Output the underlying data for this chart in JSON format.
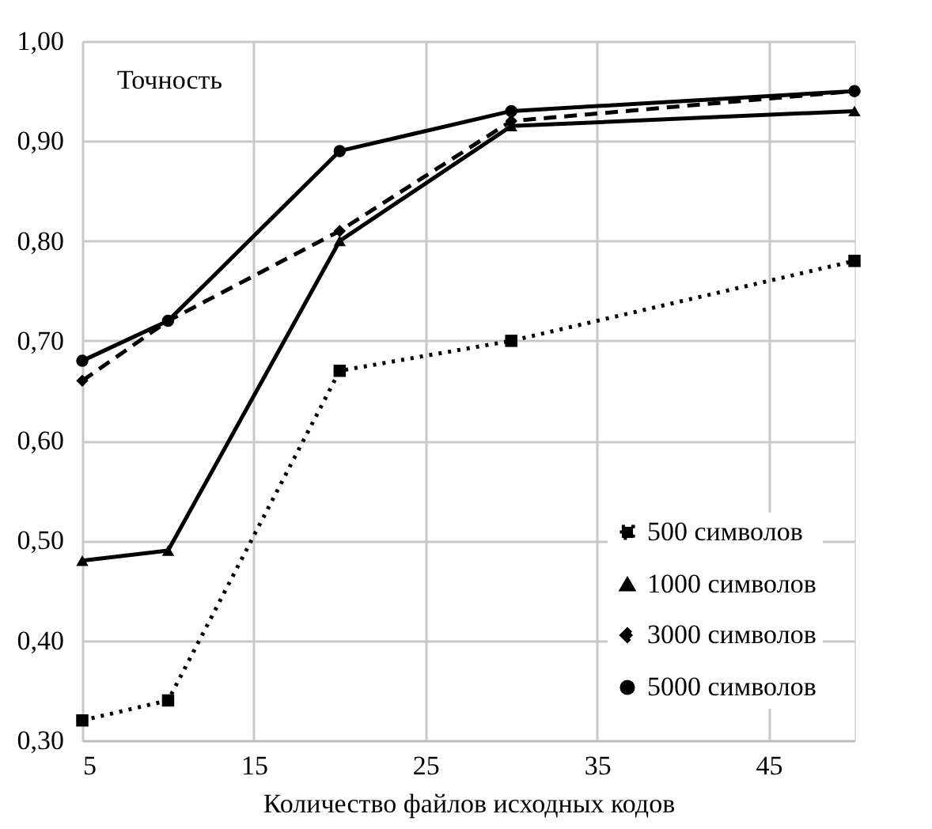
{
  "chart_data": {
    "type": "line",
    "ylabel": "Точность",
    "xlabel": "Количество файлов исходных кодов",
    "x": [
      5,
      10,
      20,
      30,
      50
    ],
    "series": [
      {
        "name": "500 символов",
        "color": "#000000",
        "values": [
          0.32,
          0.34,
          0.67,
          0.7,
          0.78
        ],
        "marker": "square",
        "line_style": "dotted"
      },
      {
        "name": "1000 символов",
        "color": "#000000",
        "values": [
          0.48,
          0.49,
          0.8,
          0.915,
          0.93
        ],
        "marker": "triangle",
        "line_style": "solid"
      },
      {
        "name": "3000 символов",
        "color": "#000000",
        "values": [
          0.66,
          0.72,
          0.81,
          0.92,
          0.95
        ],
        "marker": "diamond",
        "line_style": "dashed"
      },
      {
        "name": "5000 символов",
        "color": "#000000",
        "values": [
          0.68,
          0.72,
          0.89,
          0.93,
          0.95
        ],
        "marker": "circle",
        "line_style": "solid"
      }
    ],
    "xlim": [
      5,
      50
    ],
    "xticks": [
      5,
      15,
      25,
      35,
      45
    ],
    "ylim": [
      0.3,
      1.0
    ],
    "yticks": [
      {
        "value": 0.3,
        "label": "0,30"
      },
      {
        "value": 0.4,
        "label": "0,40"
      },
      {
        "value": 0.5,
        "label": "0,50"
      },
      {
        "value": 0.6,
        "label": "0,60"
      },
      {
        "value": 0.7,
        "label": "0,70"
      },
      {
        "value": 0.8,
        "label": "0,80"
      },
      {
        "value": 0.9,
        "label": "0,90"
      },
      {
        "value": 1.0,
        "label": "1,00"
      }
    ],
    "grid": true,
    "legend": "bottom right"
  }
}
